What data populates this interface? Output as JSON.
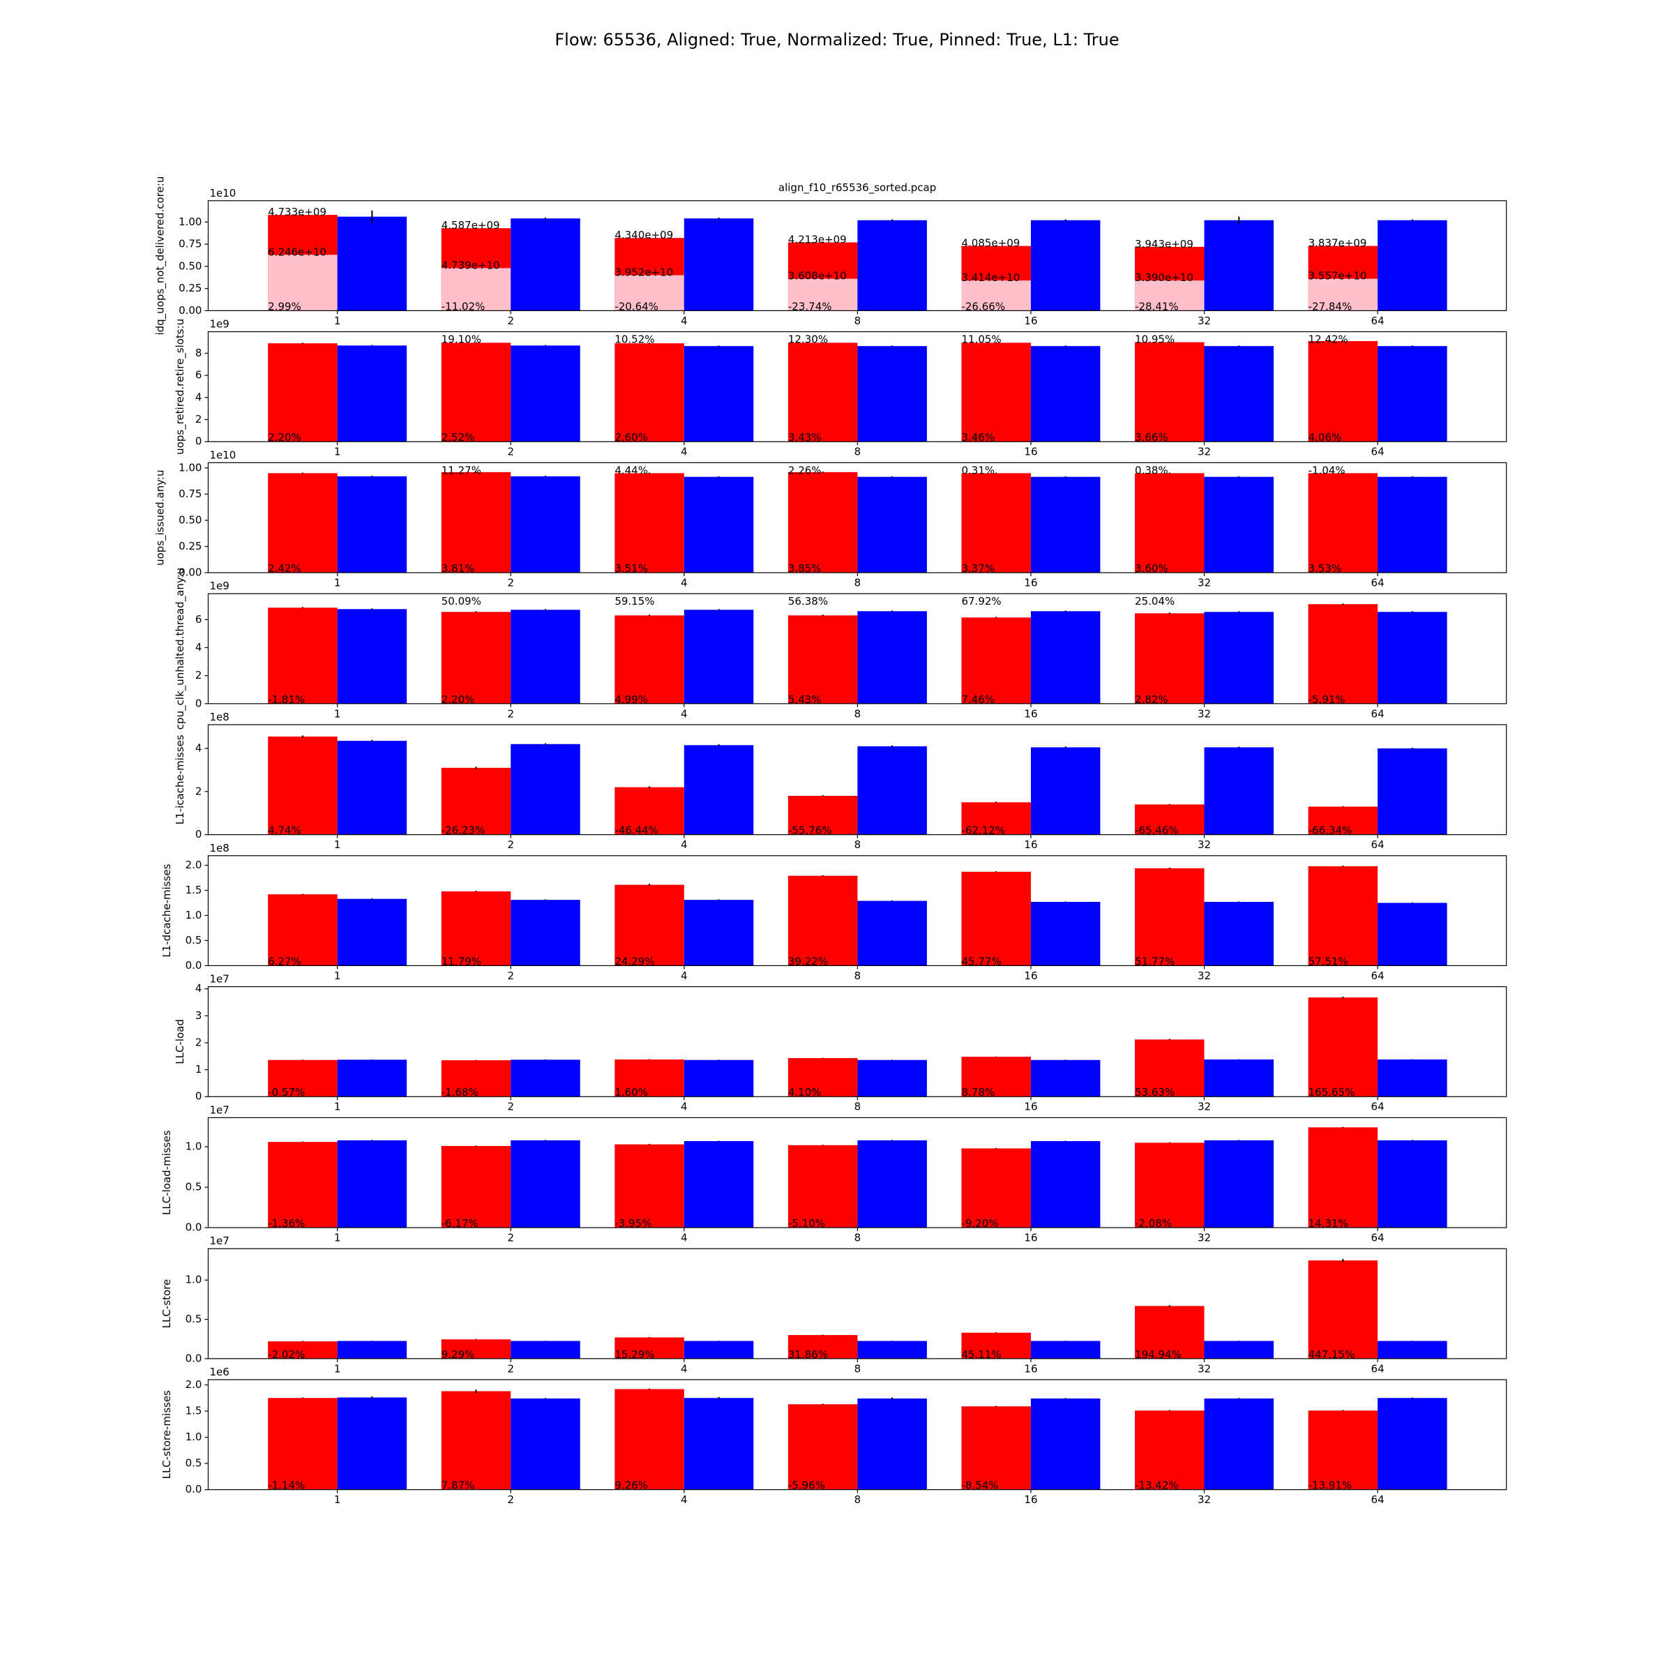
{
  "title": "Flow: 65536, Aligned: True, Normalized: True, Pinned: True, L1: True",
  "chart_data": [
    {
      "type": "bar",
      "title": "align_f10_r65536_sorted.pcap",
      "ylabel": "idq_uops_not_delivered.core:u",
      "offset": "1e10",
      "categories": [
        "1",
        "2",
        "4",
        "8",
        "16",
        "32",
        "64"
      ],
      "ylim": [
        0,
        1.24
      ],
      "yticks": [
        {
          "value": 0,
          "label": "0.00"
        },
        0.25,
        {
          "value": 0.5,
          "label": "0.50"
        },
        0.75,
        {
          "value": 1,
          "label": "1.00"
        }
      ],
      "series": [
        {
          "color": "#ff0000",
          "slot": 0,
          "values": [
            1.08,
            0.93,
            0.82,
            0.77,
            0.73,
            0.72,
            0.73
          ],
          "errors": [
            0.01,
            0.01,
            0.01,
            0.01,
            0.01,
            0.01,
            0.01
          ]
        },
        {
          "color": "#ffc0cb",
          "slot": 0,
          "values": [
            0.63,
            0.48,
            0.4,
            0.36,
            0.34,
            0.34,
            0.36
          ]
        },
        {
          "color": "#0000ff",
          "slot": 1,
          "values": [
            1.06,
            1.04,
            1.04,
            1.02,
            1.02,
            1.02,
            1.02
          ],
          "errors": [
            0.07,
            0.01,
            0.01,
            0.01,
            0.01,
            0.04,
            0.01
          ]
        }
      ],
      "series_labels": [
        [
          "4.733e+09",
          "4.587e+09",
          "4.340e+09",
          "4.213e+09",
          "4.085e+09",
          "3.943e+09",
          "3.837e+09"
        ],
        [
          "6.246e+10",
          "4.739e+10",
          "3.952e+10",
          "3.608e+10",
          "3.414e+10",
          "3.390e+10",
          "3.557e+10"
        ]
      ],
      "bottom_labels": [
        "2.99%",
        "-11.02%",
        "-20.64%",
        "-23.74%",
        "-26.66%",
        "-28.41%",
        "-27.84%"
      ]
    },
    {
      "type": "bar",
      "ylabel": "uops_retired.retire_slots:u",
      "offset": "1e9",
      "categories": [
        "1",
        "2",
        "4",
        "8",
        "16",
        "32",
        "64"
      ],
      "ylim": [
        0,
        9.95
      ],
      "yticks": [
        0,
        2,
        4,
        6,
        8
      ],
      "series": [
        {
          "color": "#ff0000",
          "slot": 0,
          "values": [
            8.9,
            8.95,
            8.9,
            8.95,
            8.95,
            9.0,
            9.1
          ],
          "errors": [
            0.05,
            0.05,
            0.05,
            0.05,
            0.05,
            0.05,
            0.05
          ]
        },
        {
          "color": "#0000ff",
          "slot": 1,
          "values": [
            8.7,
            8.7,
            8.65,
            8.65,
            8.65,
            8.65,
            8.65
          ],
          "errors": [
            0.05,
            0.05,
            0.05,
            0.05,
            0.05,
            0.05,
            0.05
          ]
        }
      ],
      "top_labels": [
        null,
        "19.10%",
        "10.52%",
        "12.30%",
        "11.05%",
        "10.95%",
        "12.42%"
      ],
      "bottom_labels": [
        "2.20%",
        "2.52%",
        "2.60%",
        "3.43%",
        "3.46%",
        "3.66%",
        "4.06%"
      ]
    },
    {
      "type": "bar",
      "ylabel": "uops_issued.any:u",
      "offset": "1e10",
      "categories": [
        "1",
        "2",
        "4",
        "8",
        "16",
        "32",
        "64"
      ],
      "ylim": [
        0,
        1.05
      ],
      "yticks": [
        {
          "value": 0,
          "label": "0.00"
        },
        0.25,
        {
          "value": 0.5,
          "label": "0.50"
        },
        0.75,
        {
          "value": 1,
          "label": "1.00"
        }
      ],
      "series": [
        {
          "color": "#ff0000",
          "slot": 0,
          "values": [
            0.95,
            0.96,
            0.95,
            0.96,
            0.95,
            0.95,
            0.95
          ],
          "errors": [
            0.005,
            0.005,
            0.005,
            0.005,
            0.005,
            0.005,
            0.005
          ]
        },
        {
          "color": "#0000ff",
          "slot": 1,
          "values": [
            0.92,
            0.92,
            0.915,
            0.915,
            0.915,
            0.915,
            0.915
          ],
          "errors": [
            0.005,
            0.005,
            0.005,
            0.005,
            0.005,
            0.005,
            0.005
          ]
        }
      ],
      "top_labels": [
        null,
        "11.27%",
        "4.44%",
        "2.26%",
        "0.31%",
        "0.38%",
        "-1.04%"
      ],
      "bottom_labels": [
        "2.42%",
        "3.81%",
        "3.51%",
        "3.85%",
        "3.37%",
        "3.60%",
        "3.53%"
      ]
    },
    {
      "type": "bar",
      "ylabel": "cpu_clk_unhalted.thread_any:u",
      "offset": "1e9",
      "categories": [
        "1",
        "2",
        "4",
        "8",
        "16",
        "32",
        "64"
      ],
      "ylim": [
        0,
        7.85
      ],
      "yticks": [
        0,
        2,
        4,
        6
      ],
      "series": [
        {
          "color": "#ff0000",
          "slot": 0,
          "values": [
            6.85,
            6.55,
            6.3,
            6.3,
            6.15,
            6.45,
            7.1
          ],
          "errors": [
            0.05,
            0.05,
            0.05,
            0.05,
            0.05,
            0.05,
            0.05
          ]
        },
        {
          "color": "#0000ff",
          "slot": 1,
          "values": [
            6.75,
            6.7,
            6.7,
            6.6,
            6.6,
            6.55,
            6.55
          ],
          "errors": [
            0.05,
            0.05,
            0.05,
            0.05,
            0.05,
            0.05,
            0.05
          ]
        }
      ],
      "top_labels": [
        null,
        "50.09%",
        "59.15%",
        "56.38%",
        "67.92%",
        "25.04%",
        null
      ],
      "bottom_labels": [
        "-1.81%",
        "2.20%",
        "4.99%",
        "5.43%",
        "7.46%",
        "2.82%",
        "-5.91%"
      ]
    },
    {
      "type": "bar",
      "ylabel": "L1-icache-misses",
      "offset": "1e8",
      "categories": [
        "1",
        "2",
        "4",
        "8",
        "16",
        "32",
        "64"
      ],
      "ylim": [
        0,
        5.1
      ],
      "yticks": [
        0,
        2,
        4
      ],
      "series": [
        {
          "color": "#ff0000",
          "slot": 0,
          "values": [
            4.55,
            3.1,
            2.2,
            1.8,
            1.5,
            1.4,
            1.3
          ],
          "errors": [
            0.05,
            0.05,
            0.04,
            0.03,
            0.03,
            0.02,
            0.02
          ]
        },
        {
          "color": "#0000ff",
          "slot": 1,
          "values": [
            4.35,
            4.2,
            4.15,
            4.1,
            4.05,
            4.05,
            4.0
          ],
          "errors": [
            0.05,
            0.04,
            0.04,
            0.04,
            0.04,
            0.03,
            0.03
          ]
        }
      ],
      "bottom_labels": [
        "4.74%",
        "-26.23%",
        "-46.44%",
        "-55.76%",
        "-62.12%",
        "-65.46%",
        "-66.34%"
      ]
    },
    {
      "type": "bar",
      "ylabel": "L1-dcache-misses",
      "offset": "1e8",
      "categories": [
        "1",
        "2",
        "4",
        "8",
        "16",
        "32",
        "64"
      ],
      "ylim": [
        0,
        2.19
      ],
      "yticks": [
        {
          "value": 0,
          "label": "0.0"
        },
        0.5,
        {
          "value": 1,
          "label": "1.0"
        },
        1.5,
        {
          "value": 2,
          "label": "2.0"
        }
      ],
      "series": [
        {
          "color": "#ff0000",
          "slot": 0,
          "values": [
            1.42,
            1.48,
            1.61,
            1.79,
            1.87,
            1.94,
            1.98
          ],
          "errors": [
            0.01,
            0.01,
            0.02,
            0.01,
            0.01,
            0.01,
            0.01
          ]
        },
        {
          "color": "#0000ff",
          "slot": 1,
          "values": [
            1.33,
            1.31,
            1.31,
            1.29,
            1.27,
            1.27,
            1.25
          ],
          "errors": [
            0.01,
            0.01,
            0.01,
            0.01,
            0.01,
            0.01,
            0.01
          ]
        }
      ],
      "bottom_labels": [
        "6.27%",
        "11.79%",
        "24.29%",
        "39.22%",
        "45.77%",
        "51.77%",
        "57.51%"
      ]
    },
    {
      "type": "bar",
      "ylabel": "LLC-load",
      "offset": "1e7",
      "categories": [
        "1",
        "2",
        "4",
        "8",
        "16",
        "32",
        "64"
      ],
      "ylim": [
        0,
        4.08
      ],
      "yticks": [
        0,
        1,
        2,
        3,
        4
      ],
      "series": [
        {
          "color": "#ff0000",
          "slot": 0,
          "values": [
            1.36,
            1.35,
            1.38,
            1.43,
            1.48,
            2.12,
            3.68
          ],
          "errors": [
            0.01,
            0.01,
            0.01,
            0.01,
            0.01,
            0.02,
            0.03
          ]
        },
        {
          "color": "#0000ff",
          "slot": 1,
          "values": [
            1.37,
            1.37,
            1.36,
            1.36,
            1.36,
            1.38,
            1.38
          ],
          "errors": [
            0.01,
            0.01,
            0.01,
            0.01,
            0.01,
            0.01,
            0.01
          ]
        }
      ],
      "bottom_labels": [
        "-0.57%",
        "-1.68%",
        "1.60%",
        "4.10%",
        "8.78%",
        "53.63%",
        "165.65%"
      ]
    },
    {
      "type": "bar",
      "ylabel": "LLC-load-misses",
      "offset": "1e7",
      "categories": [
        "1",
        "2",
        "4",
        "8",
        "16",
        "32",
        "64"
      ],
      "ylim": [
        0,
        1.36
      ],
      "yticks": [
        {
          "value": 0,
          "label": "0.0"
        },
        0.5,
        {
          "value": 1,
          "label": "1.0"
        }
      ],
      "series": [
        {
          "color": "#ff0000",
          "slot": 0,
          "values": [
            1.06,
            1.01,
            1.03,
            1.02,
            0.98,
            1.05,
            1.24
          ],
          "errors": [
            0.005,
            0.005,
            0.005,
            0.005,
            0.005,
            0.005,
            0.005
          ]
        },
        {
          "color": "#0000ff",
          "slot": 1,
          "values": [
            1.08,
            1.08,
            1.07,
            1.08,
            1.07,
            1.08,
            1.08
          ],
          "errors": [
            0.005,
            0.005,
            0.005,
            0.005,
            0.005,
            0.005,
            0.005
          ]
        }
      ],
      "bottom_labels": [
        "-1.36%",
        "-6.17%",
        "-3.95%",
        "-5.10%",
        "-9.20%",
        "-2.08%",
        "14.31%"
      ]
    },
    {
      "type": "bar",
      "ylabel": "LLC-store",
      "offset": "1e7",
      "categories": [
        "1",
        "2",
        "4",
        "8",
        "16",
        "32",
        "64"
      ],
      "ylim": [
        0,
        1.4
      ],
      "yticks": [
        {
          "value": 0,
          "label": "0.0"
        },
        0.5,
        {
          "value": 1,
          "label": "1.0"
        }
      ],
      "series": [
        {
          "color": "#ff0000",
          "slot": 0,
          "values": [
            0.22,
            0.245,
            0.27,
            0.3,
            0.33,
            0.67,
            1.25
          ],
          "errors": [
            0.005,
            0.005,
            0.005,
            0.005,
            0.005,
            0.01,
            0.02
          ]
        },
        {
          "color": "#0000ff",
          "slot": 1,
          "values": [
            0.225,
            0.225,
            0.225,
            0.225,
            0.225,
            0.225,
            0.225
          ],
          "errors": [
            0.003,
            0.003,
            0.003,
            0.003,
            0.003,
            0.003,
            0.003
          ]
        }
      ],
      "bottom_labels": [
        "-2.02%",
        "9.29%",
        "15.29%",
        "31.86%",
        "45.11%",
        "194.94%",
        "447.15%"
      ]
    },
    {
      "type": "bar",
      "ylabel": "LLC-store-misses",
      "offset": "1e6",
      "categories": [
        "1",
        "2",
        "4",
        "8",
        "16",
        "32",
        "64"
      ],
      "ylim": [
        0,
        2.1
      ],
      "yticks": [
        {
          "value": 0,
          "label": "0.0"
        },
        0.5,
        {
          "value": 1,
          "label": "1.0"
        },
        1.5,
        {
          "value": 2,
          "label": "2.0"
        }
      ],
      "series": [
        {
          "color": "#ff0000",
          "slot": 0,
          "values": [
            1.75,
            1.88,
            1.92,
            1.63,
            1.59,
            1.51,
            1.51
          ],
          "errors": [
            0.01,
            0.03,
            0.01,
            0.01,
            0.01,
            0.01,
            0.01
          ]
        },
        {
          "color": "#0000ff",
          "slot": 1,
          "values": [
            1.76,
            1.74,
            1.75,
            1.74,
            1.74,
            1.74,
            1.75
          ],
          "errors": [
            0.02,
            0.01,
            0.02,
            0.02,
            0.01,
            0.01,
            0.01
          ]
        }
      ],
      "bottom_labels": [
        "-1.14%",
        "7.87%",
        "9.26%",
        "-5.96%",
        "-8.54%",
        "-13.42%",
        "-13.91%"
      ]
    }
  ]
}
